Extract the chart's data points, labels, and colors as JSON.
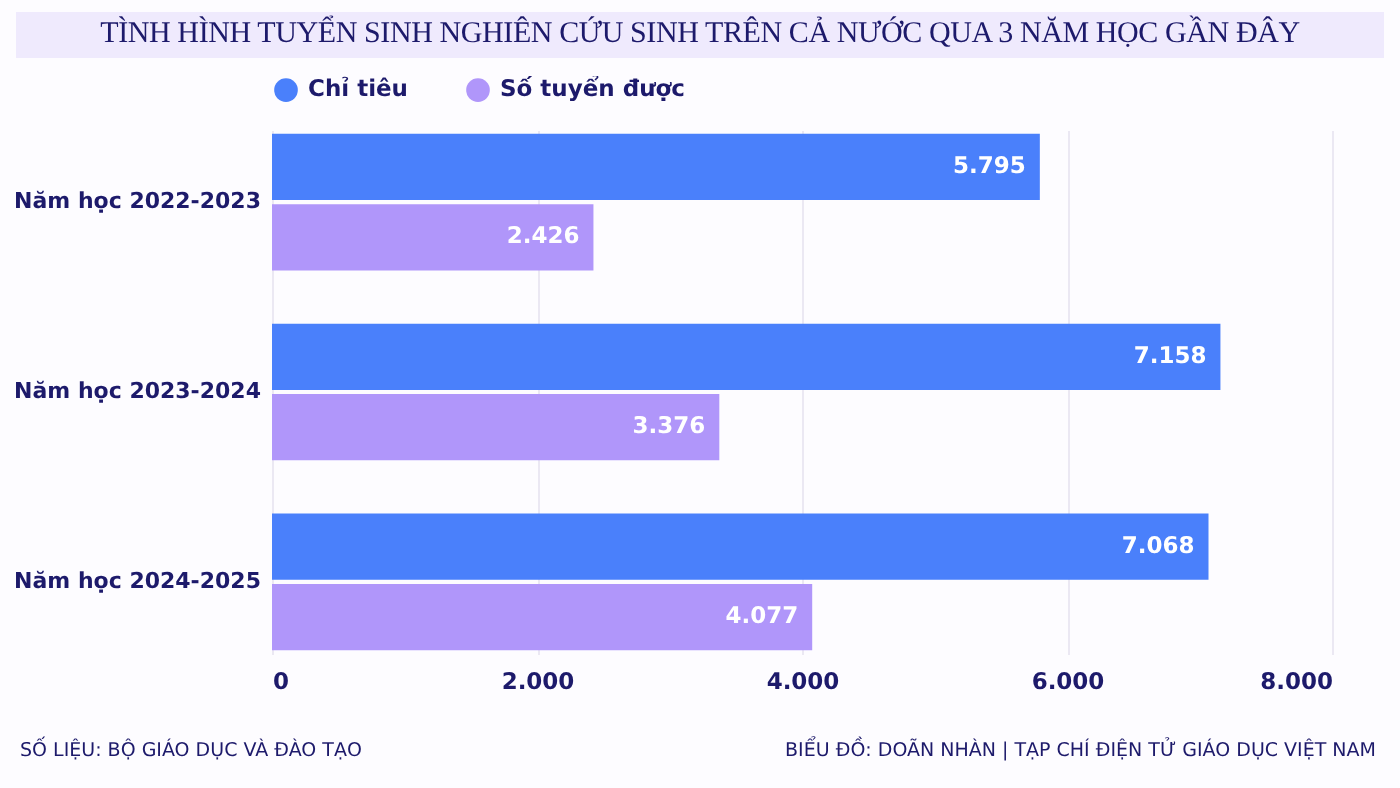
{
  "chart_data": {
    "type": "bar",
    "orientation": "horizontal",
    "title": "TÌNH HÌNH TUYỂN SINH NGHIÊN CỨU SINH TRÊN CẢ NƯỚC QUA 3 NĂM HỌC GẦN ĐÂY",
    "categories": [
      "Năm học 2022-2023",
      "Năm học 2023-2024",
      "Năm học 2024-2025"
    ],
    "series": [
      {
        "name": "Chỉ tiêu",
        "color": "#4a80fb",
        "values": [
          5795,
          7158,
          7068
        ],
        "value_labels": [
          "5.795",
          "7.158",
          "7.068"
        ]
      },
      {
        "name": "Số tuyển được",
        "color": "#b096fa",
        "values": [
          2426,
          3376,
          4077
        ],
        "value_labels": [
          "2.426",
          "3.376",
          "4.077"
        ]
      }
    ],
    "xlim": [
      0,
      8000
    ],
    "xticks": [
      0,
      {
        "value": 2000,
        "label": "2.000"
      },
      {
        "value": 4000,
        "label": "4.000"
      },
      {
        "value": 6000,
        "label": "6.000"
      },
      {
        "value": 8000,
        "label": "8.000"
      }
    ],
    "grid": "x",
    "legend": "top",
    "annotations": [
      "SỐ LIỆU: BỘ GIÁO DỤC VÀ ĐÀO TẠO",
      "BIỂU ĐỒ: DOÃN NHÀN | TẠP CHÍ ĐIỆN TỬ GIÁO DỤC VIỆT NAM"
    ]
  }
}
